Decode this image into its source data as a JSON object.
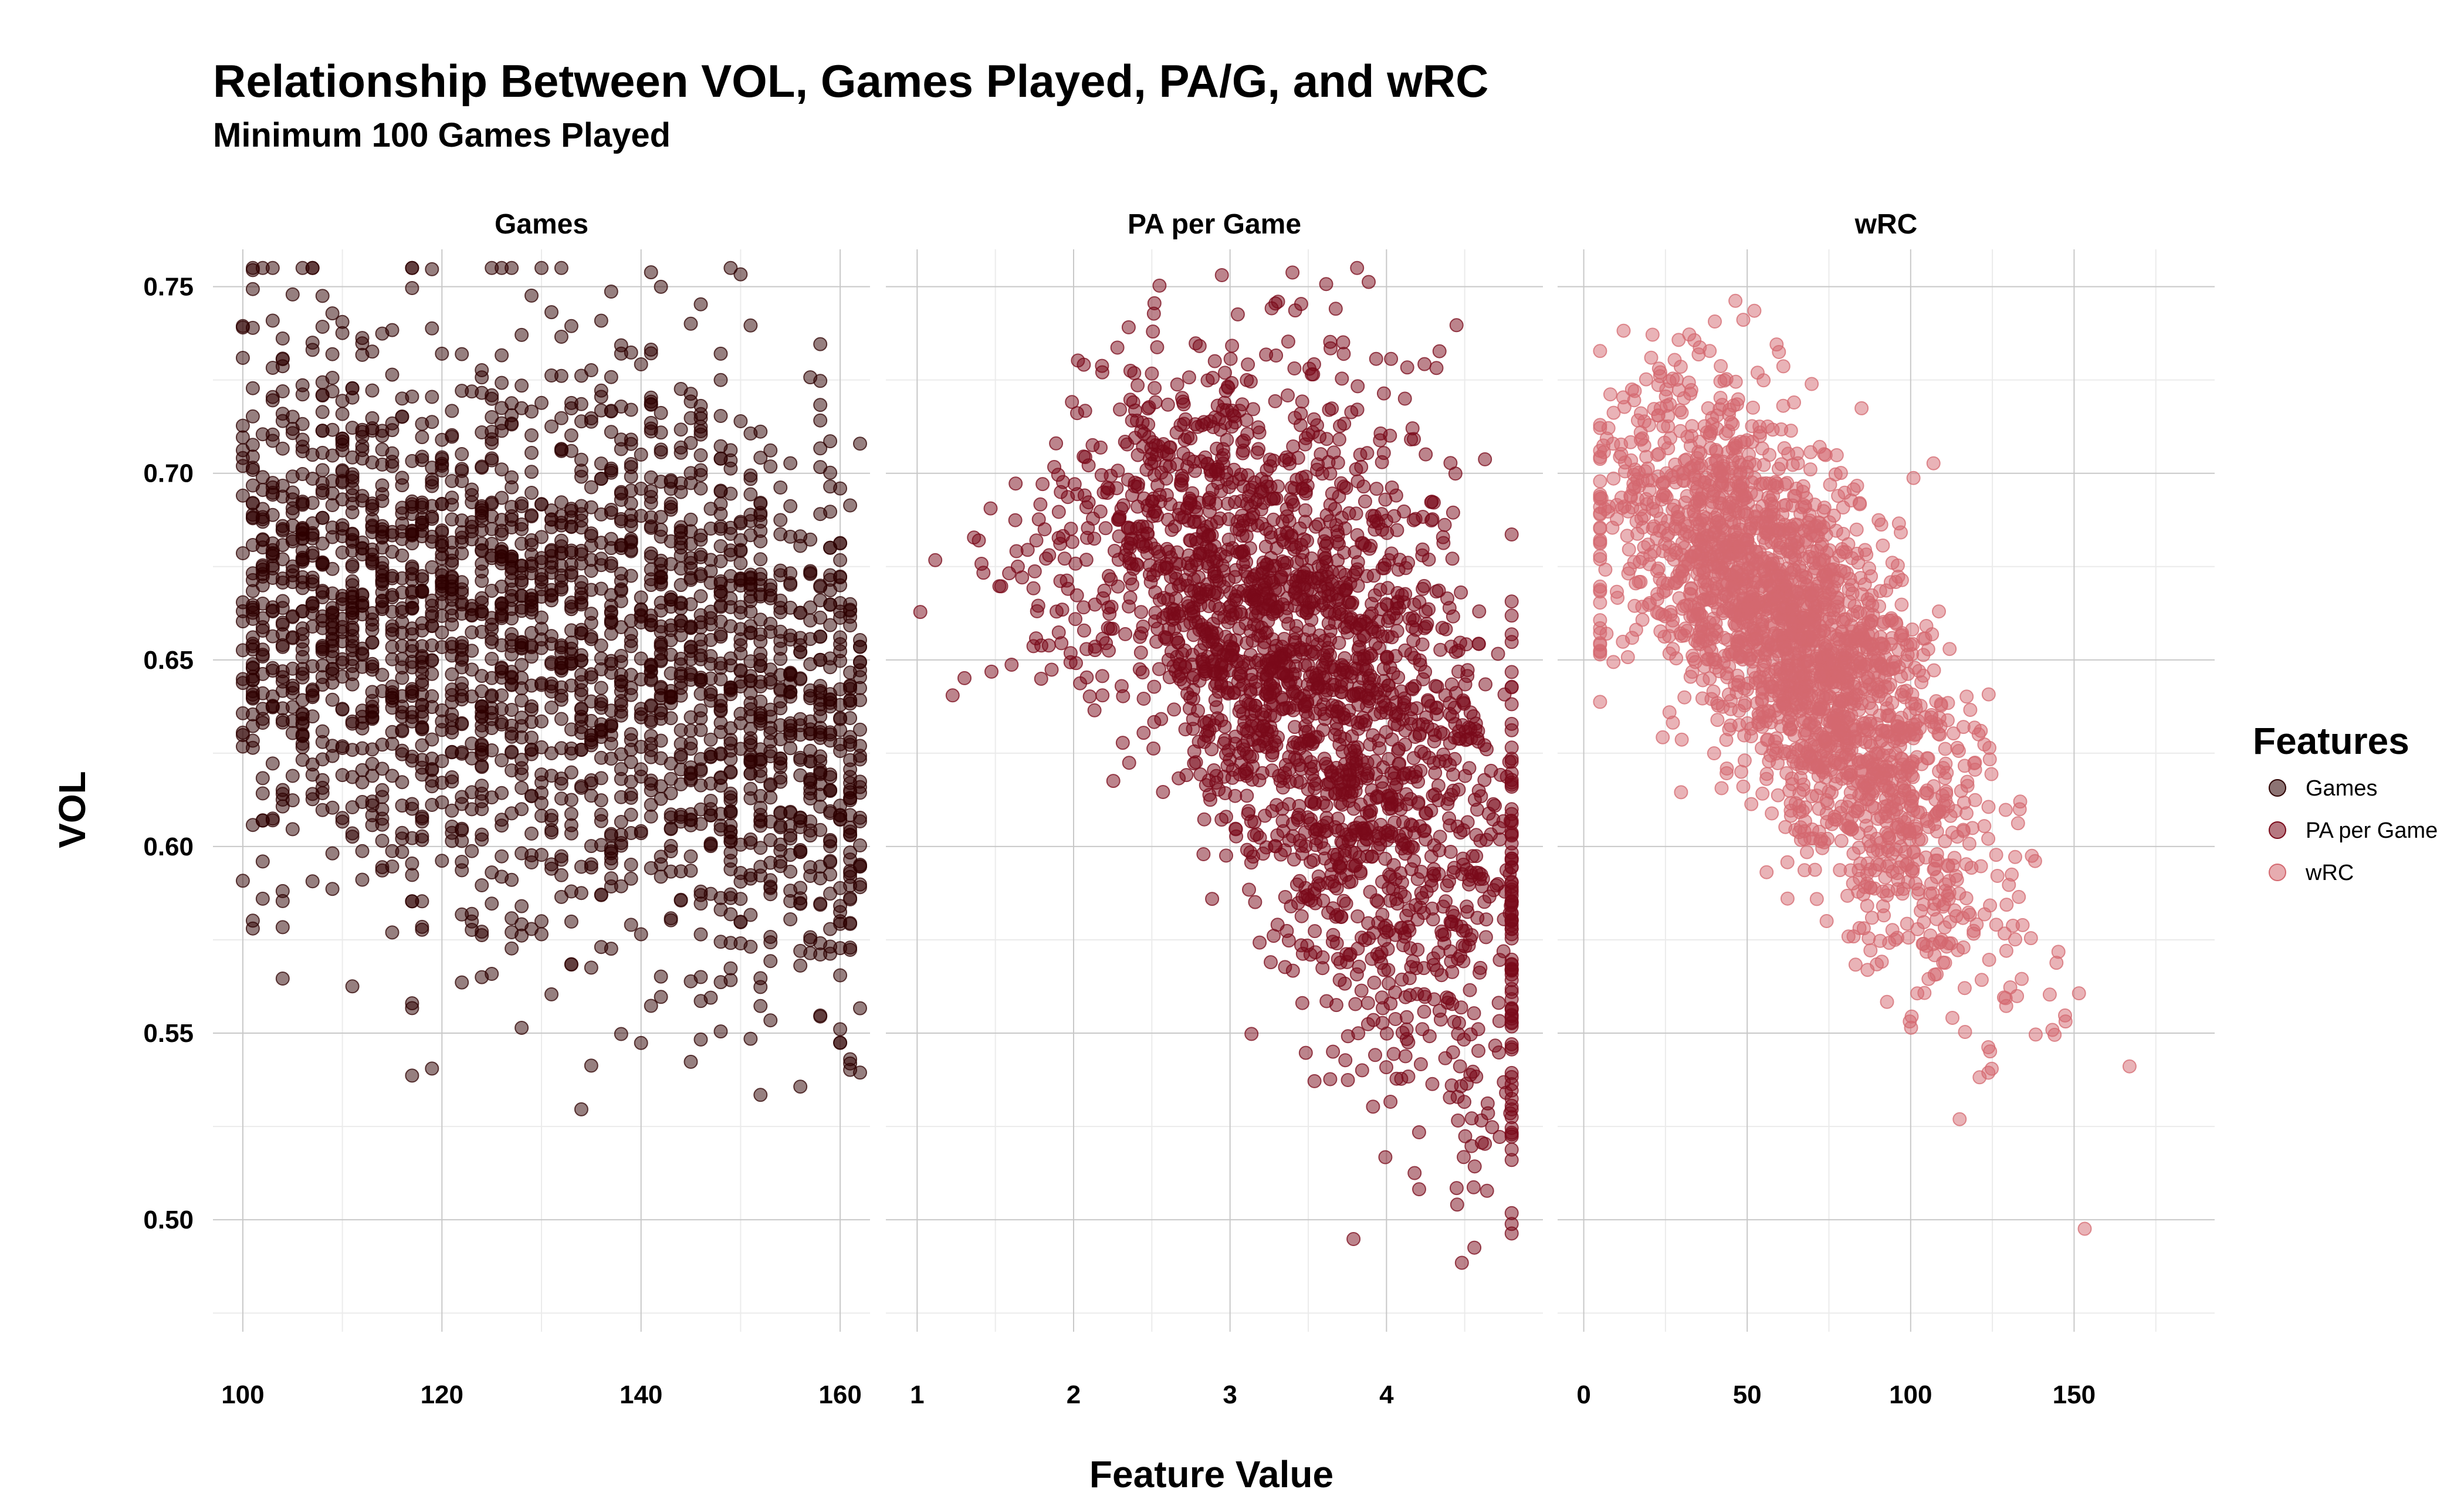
{
  "title": "Relationship Between VOL, Games Played, PA/G, and wRC",
  "subtitle": "Minimum 100 Games Played",
  "chart_data": {
    "type": "scatter",
    "title": "Relationship Between VOL, Games Played, PA/G, and wRC",
    "subtitle": "Minimum 100 Games Played",
    "xlabel": "Feature Value",
    "ylabel": "VOL",
    "ylim": [
      0.47,
      0.76
    ],
    "y_ticks": [
      0.5,
      0.55,
      0.6,
      0.65,
      0.7,
      0.75
    ],
    "y_tick_labels": [
      "0.50",
      "0.55",
      "0.60",
      "0.65",
      "0.70",
      "0.75"
    ],
    "grid": true,
    "legend": {
      "title": "Features",
      "position": "right",
      "entries": [
        "Games",
        "PA per Game",
        "wRC"
      ]
    },
    "point_opacity": 0.5,
    "approx_points_per_panel": 2400,
    "panels": [
      {
        "name": "Games",
        "color": "#2d0000",
        "xlim": [
          97,
          163
        ],
        "x_ticks": [
          100,
          120,
          140,
          160
        ],
        "x_tick_labels": [
          "100",
          "120",
          "140",
          "160"
        ],
        "x_minor_ticks": [
          110,
          130,
          150
        ],
        "trend": [
          {
            "x": 100,
            "y_center": 0.668,
            "y_low": 0.59,
            "y_high": 0.728
          },
          {
            "x": 120,
            "y_center": 0.663,
            "y_low": 0.585,
            "y_high": 0.722
          },
          {
            "x": 140,
            "y_center": 0.653,
            "y_low": 0.575,
            "y_high": 0.715
          },
          {
            "x": 150,
            "y_center": 0.643,
            "y_low": 0.565,
            "y_high": 0.705
          },
          {
            "x": 160,
            "y_center": 0.628,
            "y_low": 0.555,
            "y_high": 0.69
          },
          {
            "x": 162,
            "y_center": 0.625,
            "y_low": 0.55,
            "y_high": 0.685
          }
        ]
      },
      {
        "name": "PA per Game",
        "color": "#7a0a1a",
        "xlim": [
          0.8,
          5.0
        ],
        "x_ticks": [
          1,
          2,
          3,
          4
        ],
        "x_tick_labels": [
          "1",
          "2",
          "3",
          "4"
        ],
        "x_minor_ticks": [
          1.5,
          2.5,
          3.5,
          4.5
        ],
        "trend": [
          {
            "x": 1.0,
            "y_center": 0.66,
            "y_low": 0.62,
            "y_high": 0.72
          },
          {
            "x": 1.5,
            "y_center": 0.668,
            "y_low": 0.64,
            "y_high": 0.7
          },
          {
            "x": 2.0,
            "y_center": 0.685,
            "y_low": 0.655,
            "y_high": 0.735
          },
          {
            "x": 2.5,
            "y_center": 0.685,
            "y_low": 0.645,
            "y_high": 0.73
          },
          {
            "x": 3.0,
            "y_center": 0.665,
            "y_low": 0.61,
            "y_high": 0.725
          },
          {
            "x": 3.5,
            "y_center": 0.645,
            "y_low": 0.585,
            "y_high": 0.725
          },
          {
            "x": 4.0,
            "y_center": 0.628,
            "y_low": 0.56,
            "y_high": 0.715
          },
          {
            "x": 4.5,
            "y_center": 0.6,
            "y_low": 0.525,
            "y_high": 0.69
          },
          {
            "x": 4.8,
            "y_center": 0.58,
            "y_low": 0.515,
            "y_high": 0.65
          }
        ]
      },
      {
        "name": "wRC",
        "color": "#d4686f",
        "xlim": [
          -8,
          193
        ],
        "x_ticks": [
          0,
          50,
          100,
          150
        ],
        "x_tick_labels": [
          "0",
          "50",
          "100",
          "150"
        ],
        "x_minor_ticks": [
          25,
          75,
          125,
          175
        ],
        "trend": [
          {
            "x": 5,
            "y_center": 0.685,
            "y_low": 0.65,
            "y_high": 0.72
          },
          {
            "x": 25,
            "y_center": 0.69,
            "y_low": 0.655,
            "y_high": 0.735
          },
          {
            "x": 50,
            "y_center": 0.67,
            "y_low": 0.63,
            "y_high": 0.715
          },
          {
            "x": 75,
            "y_center": 0.645,
            "y_low": 0.6,
            "y_high": 0.69
          },
          {
            "x": 100,
            "y_center": 0.618,
            "y_low": 0.57,
            "y_high": 0.665
          },
          {
            "x": 125,
            "y_center": 0.588,
            "y_low": 0.54,
            "y_high": 0.635
          },
          {
            "x": 150,
            "y_center": 0.56,
            "y_low": 0.515,
            "y_high": 0.6
          },
          {
            "x": 185,
            "y_center": 0.52,
            "y_low": 0.505,
            "y_high": 0.54
          }
        ]
      }
    ]
  }
}
